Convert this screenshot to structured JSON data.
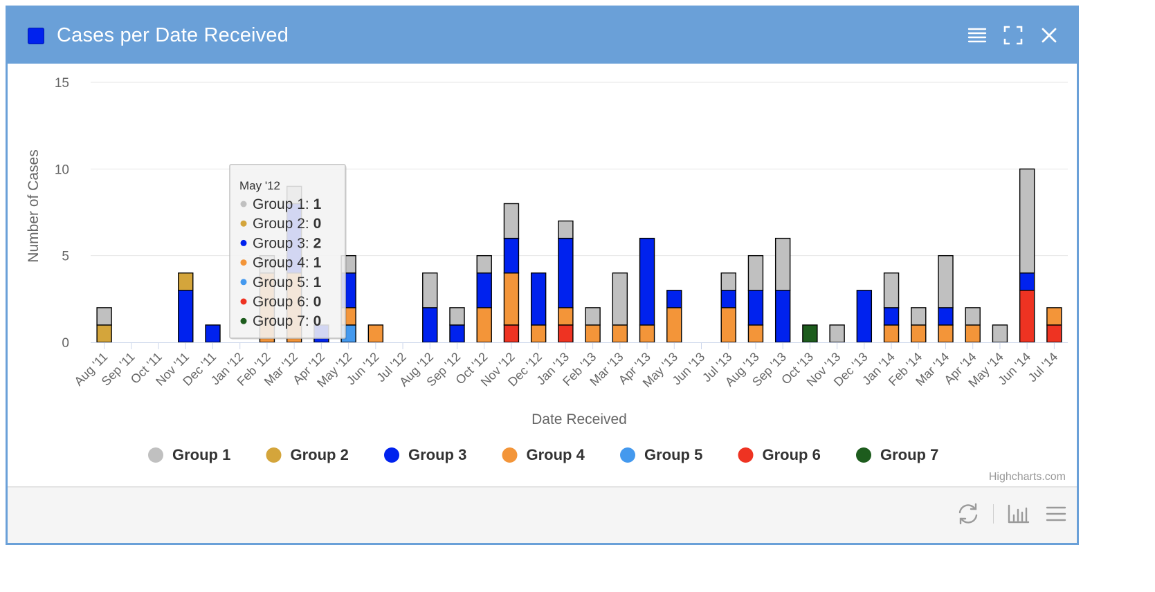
{
  "window": {
    "title": "Cases per Date Received",
    "accent_color": "#6aa0d8",
    "title_icon_color": "#0022ee",
    "actions": [
      "menu-icon",
      "fullscreen-icon",
      "close-icon"
    ]
  },
  "footer": {
    "actions": [
      "refresh-icon",
      "bar-chart-icon",
      "menu-icon"
    ],
    "credits": "Highcharts.com"
  },
  "chart_data": {
    "type": "bar",
    "stacked": true,
    "title": "Cases per Date Received",
    "xlabel": "Date Received",
    "ylabel": "Number of Cases",
    "ylim": [
      0,
      15
    ],
    "yticks": [
      0,
      5,
      10,
      15
    ],
    "grid": true,
    "legend": "bottom-center",
    "categories": [
      "Aug '11",
      "Sep '11",
      "Oct '11",
      "Nov '11",
      "Dec '11",
      "Jan '12",
      "Feb '12",
      "Mar '12",
      "Apr '12",
      "May '12",
      "Jun '12",
      "Jul '12",
      "Aug '12",
      "Sep '12",
      "Oct '12",
      "Nov '12",
      "Dec '12",
      "Jan '13",
      "Feb '13",
      "Mar '13",
      "Apr '13",
      "May '13",
      "Jun '13",
      "Jul '13",
      "Aug '13",
      "Sep '13",
      "Oct '13",
      "Nov '13",
      "Dec '13",
      "Jan '14",
      "Feb '14",
      "Mar '14",
      "Apr '14",
      "May '14",
      "Jun '14",
      "Jul '14"
    ],
    "series": [
      {
        "name": "Group 7",
        "color": "#1d5c1d",
        "values": [
          0,
          0,
          0,
          0,
          0,
          0,
          0,
          0,
          0,
          0,
          0,
          0,
          0,
          0,
          0,
          0,
          0,
          0,
          0,
          0,
          0,
          0,
          0,
          0,
          0,
          0,
          1,
          0,
          0,
          0,
          0,
          0,
          0,
          0,
          0,
          0
        ]
      },
      {
        "name": "Group 6",
        "color": "#ee3322",
        "values": [
          0,
          0,
          0,
          0,
          0,
          0,
          0,
          0,
          0,
          0,
          0,
          0,
          0,
          0,
          0,
          1,
          0,
          1,
          0,
          0,
          0,
          0,
          0,
          0,
          0,
          0,
          0,
          0,
          0,
          0,
          0,
          0,
          0,
          0,
          3,
          1
        ]
      },
      {
        "name": "Group 5",
        "color": "#4499ee",
        "values": [
          0,
          0,
          0,
          0,
          0,
          0,
          0,
          0,
          0,
          1,
          0,
          0,
          0,
          0,
          0,
          0,
          0,
          0,
          0,
          0,
          0,
          0,
          0,
          0,
          0,
          0,
          0,
          0,
          0,
          0,
          0,
          0,
          0,
          0,
          0,
          0
        ]
      },
      {
        "name": "Group 4",
        "color": "#f39539",
        "values": [
          0,
          0,
          0,
          0,
          0,
          0,
          4,
          4,
          0,
          1,
          1,
          0,
          0,
          0,
          2,
          3,
          1,
          1,
          1,
          1,
          1,
          2,
          0,
          2,
          1,
          0,
          0,
          0,
          0,
          1,
          1,
          1,
          1,
          0,
          0,
          1
        ]
      },
      {
        "name": "Group 3",
        "color": "#0022ee",
        "values": [
          0,
          0,
          0,
          3,
          1,
          0,
          0,
          4,
          1,
          2,
          0,
          0,
          2,
          1,
          2,
          2,
          3,
          4,
          0,
          0,
          5,
          1,
          0,
          1,
          2,
          3,
          0,
          0,
          3,
          1,
          0,
          1,
          0,
          0,
          1,
          0
        ]
      },
      {
        "name": "Group 2",
        "color": "#d4a53b",
        "values": [
          1,
          0,
          0,
          1,
          0,
          0,
          0,
          0,
          0,
          0,
          0,
          0,
          0,
          0,
          0,
          0,
          0,
          0,
          0,
          0,
          0,
          0,
          0,
          0,
          0,
          0,
          0,
          0,
          0,
          0,
          0,
          0,
          0,
          0,
          0,
          0
        ]
      },
      {
        "name": "Group 1",
        "color": "#c0c0c0",
        "values": [
          1,
          0,
          0,
          0,
          0,
          0,
          1,
          1,
          0,
          1,
          0,
          0,
          2,
          1,
          1,
          2,
          0,
          1,
          1,
          3,
          0,
          0,
          0,
          1,
          2,
          3,
          0,
          1,
          0,
          2,
          1,
          3,
          1,
          1,
          6,
          0
        ]
      }
    ],
    "legend_order": [
      "Group 1",
      "Group 2",
      "Group 3",
      "Group 4",
      "Group 5",
      "Group 6",
      "Group 7"
    ],
    "tooltip": {
      "header": "May '12",
      "category_index": 9,
      "rows": [
        {
          "name": "Group 1",
          "value": "1",
          "color": "#c0c0c0"
        },
        {
          "name": "Group 2",
          "value": "0",
          "color": "#d4a53b"
        },
        {
          "name": "Group 3",
          "value": "2",
          "color": "#0022ee"
        },
        {
          "name": "Group 4",
          "value": "1",
          "color": "#f39539"
        },
        {
          "name": "Group 5",
          "value": "1",
          "color": "#4499ee"
        },
        {
          "name": "Group 6",
          "value": "0",
          "color": "#ee3322"
        },
        {
          "name": "Group 7",
          "value": "0",
          "color": "#1d5c1d"
        }
      ]
    }
  }
}
